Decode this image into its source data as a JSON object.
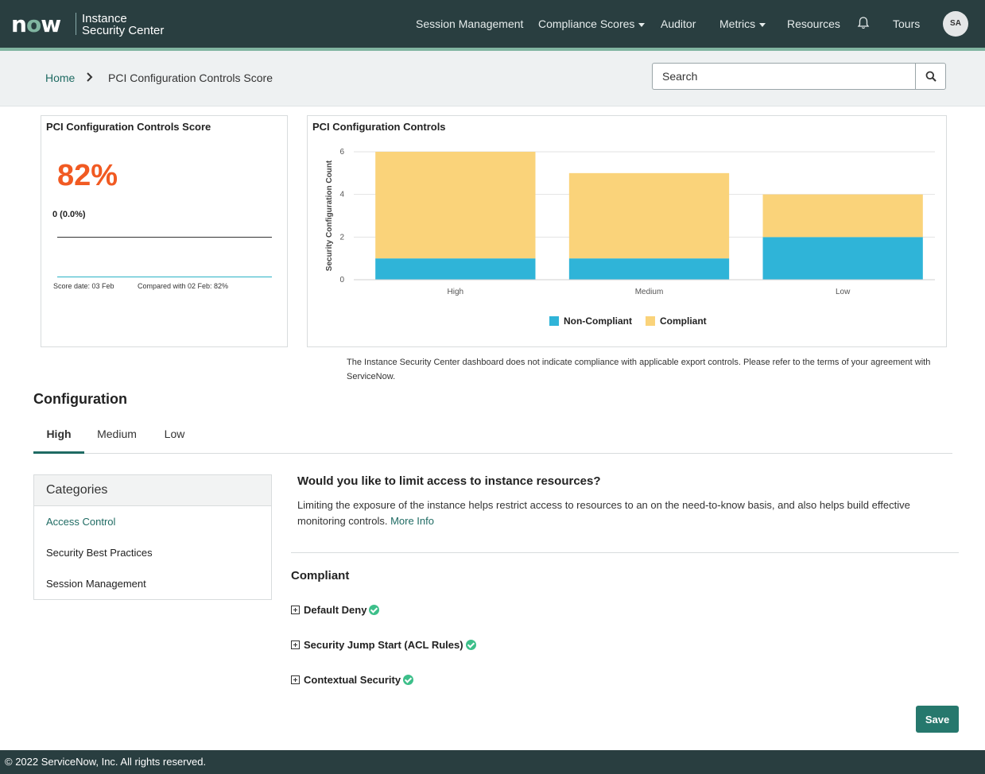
{
  "header": {
    "logo": "now",
    "product_line1": "Instance",
    "product_line2": "Security Center",
    "nav": [
      {
        "label": "Session Management"
      },
      {
        "label": "Compliance Scores"
      },
      {
        "label": "Auditor"
      },
      {
        "label": "Metrics"
      },
      {
        "label": "Resources"
      },
      {
        "label": "Tours"
      }
    ],
    "avatar_initials": "SA"
  },
  "breadcrumb": {
    "home": "Home",
    "current": "PCI Configuration Controls Score"
  },
  "search": {
    "placeholder": "Search"
  },
  "score_card": {
    "title": "PCI Configuration Controls Score",
    "score": "82%",
    "delta": "0 (0.0%)",
    "score_date": "Score date: 03 Feb",
    "compared": "Compared with 02 Feb: 82%"
  },
  "chart_card": {
    "title": "PCI Configuration Controls"
  },
  "chart_data": {
    "type": "bar",
    "stacked": true,
    "title": "PCI Configuration Controls",
    "categories": [
      "High",
      "Medium",
      "Low"
    ],
    "series": [
      {
        "name": "Non-Compliant",
        "values": [
          1,
          1,
          2
        ]
      },
      {
        "name": "Compliant",
        "values": [
          5,
          4,
          2
        ]
      }
    ],
    "ylabel": "Security Configuration Count",
    "yticks": [
      "0",
      "2",
      "4",
      "6"
    ],
    "ylim": [
      0,
      6
    ],
    "grid": true,
    "legend_position": "bottom",
    "colors": {
      "Non-Compliant": "#2fb4d8",
      "Compliant": "#fad37a"
    }
  },
  "disclaimer": "The Instance Security Center dashboard does not indicate compliance with applicable export controls. Please refer to the terms of your agreement with ServiceNow.",
  "configuration": {
    "title": "Configuration",
    "tabs": [
      {
        "label": "High"
      },
      {
        "label": "Medium"
      },
      {
        "label": "Low"
      }
    ],
    "categories_title": "Categories",
    "categories": [
      {
        "label": "Access Control"
      },
      {
        "label": "Security Best Practices"
      },
      {
        "label": "Session Management"
      }
    ],
    "question": "Would you like to limit access to instance resources?",
    "description": "Limiting the exposure of the instance helps restrict access to resources to an on the need-to-know basis, and also helps build effective monitoring controls.",
    "more_info": "More Info",
    "compliant_heading": "Compliant",
    "items": [
      {
        "label": "Default Deny"
      },
      {
        "label": "Security Jump Start (ACL Rules)"
      },
      {
        "label": "Contextual Security"
      }
    ],
    "save_label": "Save"
  },
  "footer": {
    "copyright": "© 2022 ServiceNow, Inc. All rights reserved."
  },
  "colors": {
    "header_bg": "#293e40",
    "accent": "#81b5a1",
    "link": "#1f6b63",
    "score": "#f15a22",
    "save_button": "#26786d",
    "check": "#3dbf8a"
  }
}
